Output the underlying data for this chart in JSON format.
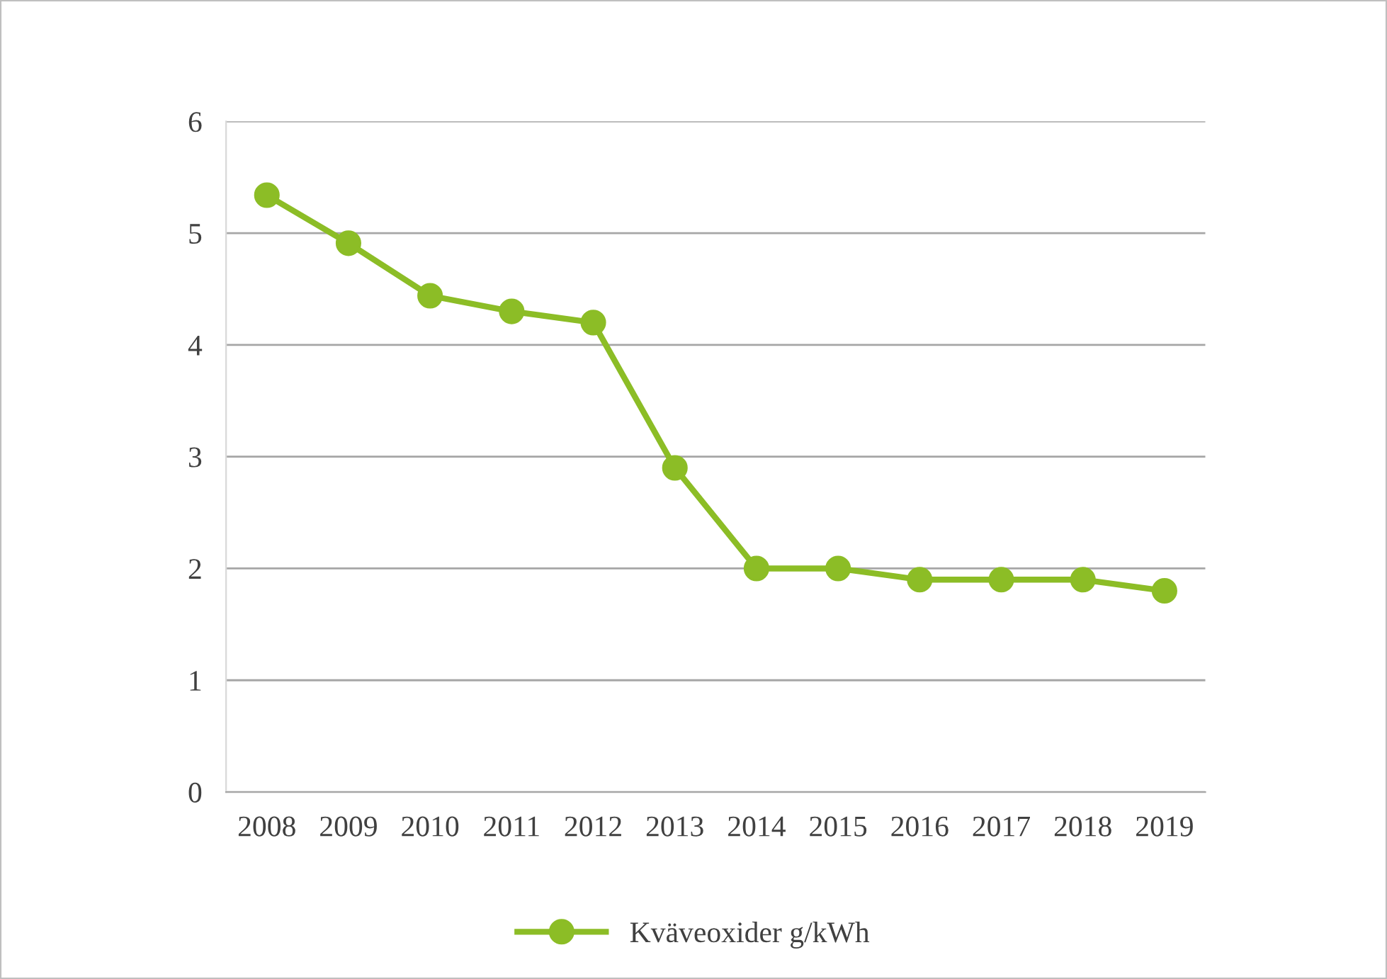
{
  "chart_data": {
    "type": "line",
    "categories": [
      "2008",
      "2009",
      "2010",
      "2011",
      "2012",
      "2013",
      "2014",
      "2015",
      "2016",
      "2017",
      "2018",
      "2019"
    ],
    "series": [
      {
        "name": "Kväveoxider g/kWh",
        "color": "#8cbd26",
        "values": [
          5.34,
          4.91,
          4.44,
          4.3,
          4.2,
          2.9,
          2.0,
          2.0,
          1.9,
          1.9,
          1.9,
          1.8
        ]
      }
    ],
    "ylim": [
      0,
      6
    ],
    "yticks": [
      0,
      1,
      2,
      3,
      4,
      5,
      6
    ],
    "grid": "y",
    "legend": "bottom",
    "marker": "circle",
    "line_style": "solid"
  }
}
